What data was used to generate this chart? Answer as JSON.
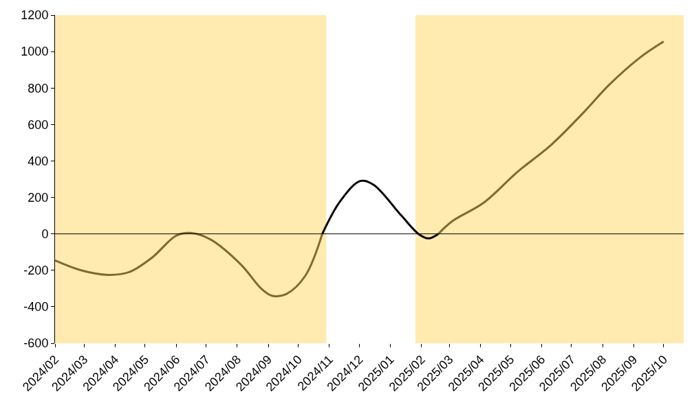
{
  "chart_data": {
    "type": "line",
    "xlim": [
      "2024-02-01",
      "2025-10-21"
    ],
    "ylim": [
      -600,
      1200
    ],
    "yticks": [
      -600,
      -400,
      -200,
      0,
      200,
      400,
      600,
      800,
      1000,
      1200
    ],
    "xticks": [
      {
        "value": "2024-02-01",
        "label": "2024/02"
      },
      {
        "value": "2024-03-01",
        "label": "2024/03"
      },
      {
        "value": "2024-04-01",
        "label": "2024/04"
      },
      {
        "value": "2024-05-01",
        "label": "2024/05"
      },
      {
        "value": "2024-06-01",
        "label": "2024/06"
      },
      {
        "value": "2024-07-01",
        "label": "2024/07"
      },
      {
        "value": "2024-08-01",
        "label": "2024/08"
      },
      {
        "value": "2024-09-01",
        "label": "2024/09"
      },
      {
        "value": "2024-10-01",
        "label": "2024/10"
      },
      {
        "value": "2024-11-01",
        "label": "2024/11"
      },
      {
        "value": "2024-12-01",
        "label": "2024/12"
      },
      {
        "value": "2025-01-01",
        "label": "2025/01"
      },
      {
        "value": "2025-02-01",
        "label": "2025/02"
      },
      {
        "value": "2025-03-01",
        "label": "2025/03"
      },
      {
        "value": "2025-04-01",
        "label": "2025/04"
      },
      {
        "value": "2025-05-01",
        "label": "2025/05"
      },
      {
        "value": "2025-06-01",
        "label": "2025/06"
      },
      {
        "value": "2025-07-01",
        "label": "2025/07"
      },
      {
        "value": "2025-08-01",
        "label": "2025/08"
      },
      {
        "value": "2025-09-01",
        "label": "2025/09"
      },
      {
        "value": "2025-10-01",
        "label": "2025/10"
      }
    ],
    "grid": false,
    "ref_lines": [
      {
        "axis": "y",
        "value": 0,
        "color": "#000000",
        "line_style": "solid"
      }
    ],
    "marker": "none",
    "line_style": "solid",
    "series": [
      {
        "color": "#7f6a2e",
        "x": [
          "2024-02-01",
          "2024-02-27",
          "2024-03-25",
          "2024-04-15",
          "2024-05-08",
          "2024-06-01",
          "2024-06-15",
          "2024-07-05",
          "2024-08-05",
          "2024-08-25",
          "2024-09-05",
          "2024-09-19",
          "2024-10-08",
          "2024-10-25"
        ],
        "values": [
          -146,
          -200,
          -225,
          -210,
          -130,
          -10,
          5,
          -30,
          -170,
          -300,
          -340,
          -330,
          -230,
          0
        ]
      },
      {
        "color": "#000000",
        "x": [
          "2024-10-25",
          "2024-11-12",
          "2024-12-02",
          "2024-12-15",
          "2025-01-12",
          "2025-01-29",
          "2025-02-08",
          "2025-02-18"
        ],
        "values": [
          0,
          180,
          290,
          270,
          100,
          0,
          -25,
          0
        ]
      },
      {
        "color": "#7f6a2e",
        "x": [
          "2025-02-18",
          "2025-03-04",
          "2025-04-04",
          "2025-05-08",
          "2025-06-11",
          "2025-07-12",
          "2025-08-08",
          "2025-09-08",
          "2025-10-01"
        ],
        "values": [
          0,
          70,
          170,
          340,
          490,
          660,
          820,
          970,
          1055
        ]
      }
    ],
    "bands": [
      {
        "axis": "x",
        "from": "2024-02-01",
        "to": "2024-10-29",
        "color": "#ffeaaf"
      },
      {
        "axis": "x",
        "from": "2025-01-26",
        "to": "2025-10-21",
        "color": "#ffeaaf"
      }
    ]
  }
}
